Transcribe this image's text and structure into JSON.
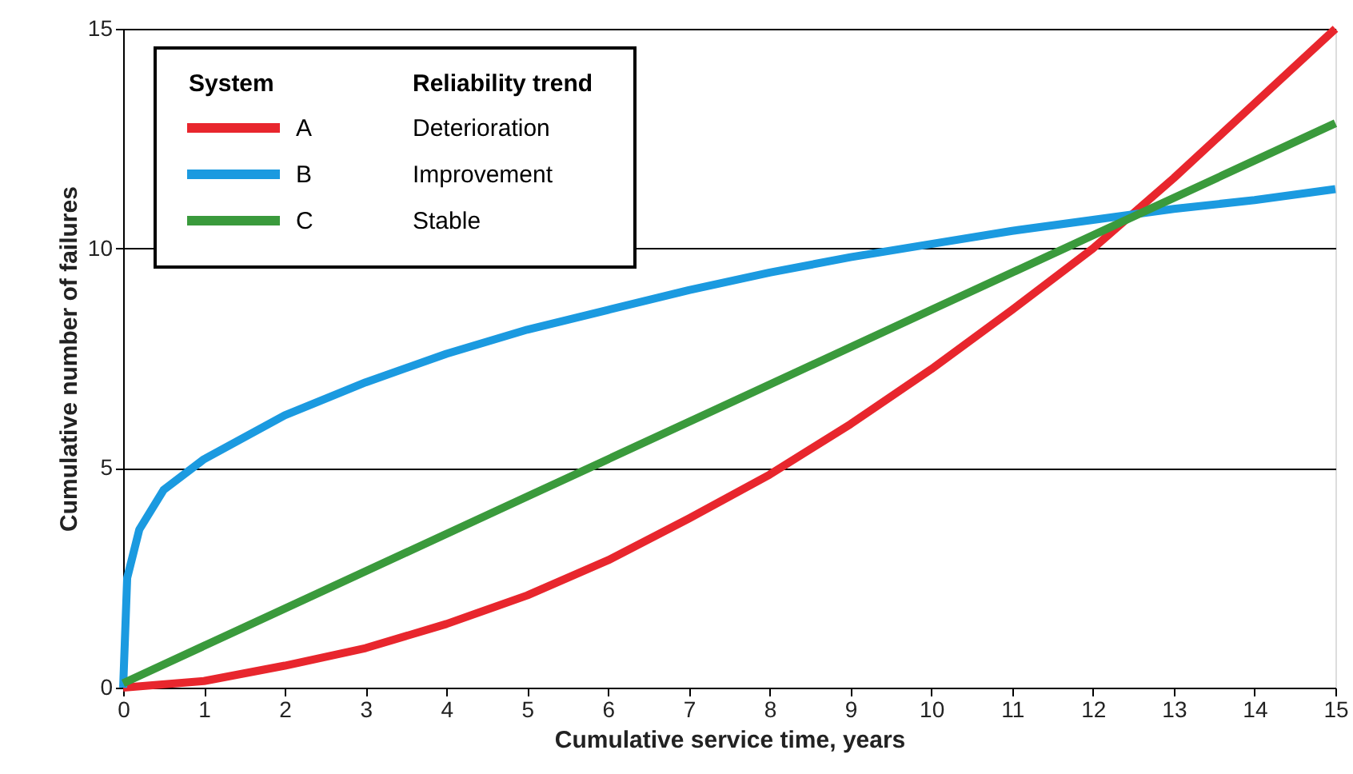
{
  "chart_data": {
    "type": "line",
    "xlabel": "Cumulative service time, years",
    "ylabel": "Cumulative number of failures",
    "xlim": [
      0,
      15
    ],
    "ylim": [
      0,
      15
    ],
    "xticks": [
      0,
      1,
      2,
      3,
      4,
      5,
      6,
      7,
      8,
      9,
      10,
      11,
      12,
      13,
      14,
      15
    ],
    "yticks": [
      0,
      5,
      10,
      15
    ],
    "grid": "y",
    "legend": "top left",
    "legend_title": "System",
    "marker": "none",
    "line_style": "solid",
    "annotations": [
      "Reliability trend",
      "Deterioration",
      "Improvement",
      "Stable"
    ],
    "series": [
      {
        "name": "A",
        "color": "#e8262d",
        "x": [
          0,
          1,
          2,
          3,
          4,
          5,
          6,
          7,
          8,
          9,
          10,
          11,
          12,
          13,
          14,
          15
        ],
        "values": [
          0,
          0.15,
          0.5,
          0.9,
          1.45,
          2.1,
          2.9,
          3.85,
          4.85,
          6.0,
          7.25,
          8.6,
          10.0,
          11.6,
          13.3,
          15.0
        ]
      },
      {
        "name": "B",
        "color": "#1b9ae0",
        "x": [
          0,
          0.05,
          0.2,
          0.5,
          1,
          2,
          3,
          4,
          5,
          6,
          7,
          8,
          9,
          10,
          11,
          12,
          13,
          14,
          15
        ],
        "values": [
          0,
          2.5,
          3.6,
          4.5,
          5.2,
          6.2,
          6.95,
          7.6,
          8.15,
          8.6,
          9.05,
          9.45,
          9.8,
          10.1,
          10.4,
          10.65,
          10.9,
          11.1,
          11.35
        ]
      },
      {
        "name": "C",
        "color": "#3a9a3c",
        "x": [
          0,
          5,
          10,
          15
        ],
        "values": [
          0.1,
          4.35,
          8.6,
          12.85
        ]
      }
    ]
  }
}
